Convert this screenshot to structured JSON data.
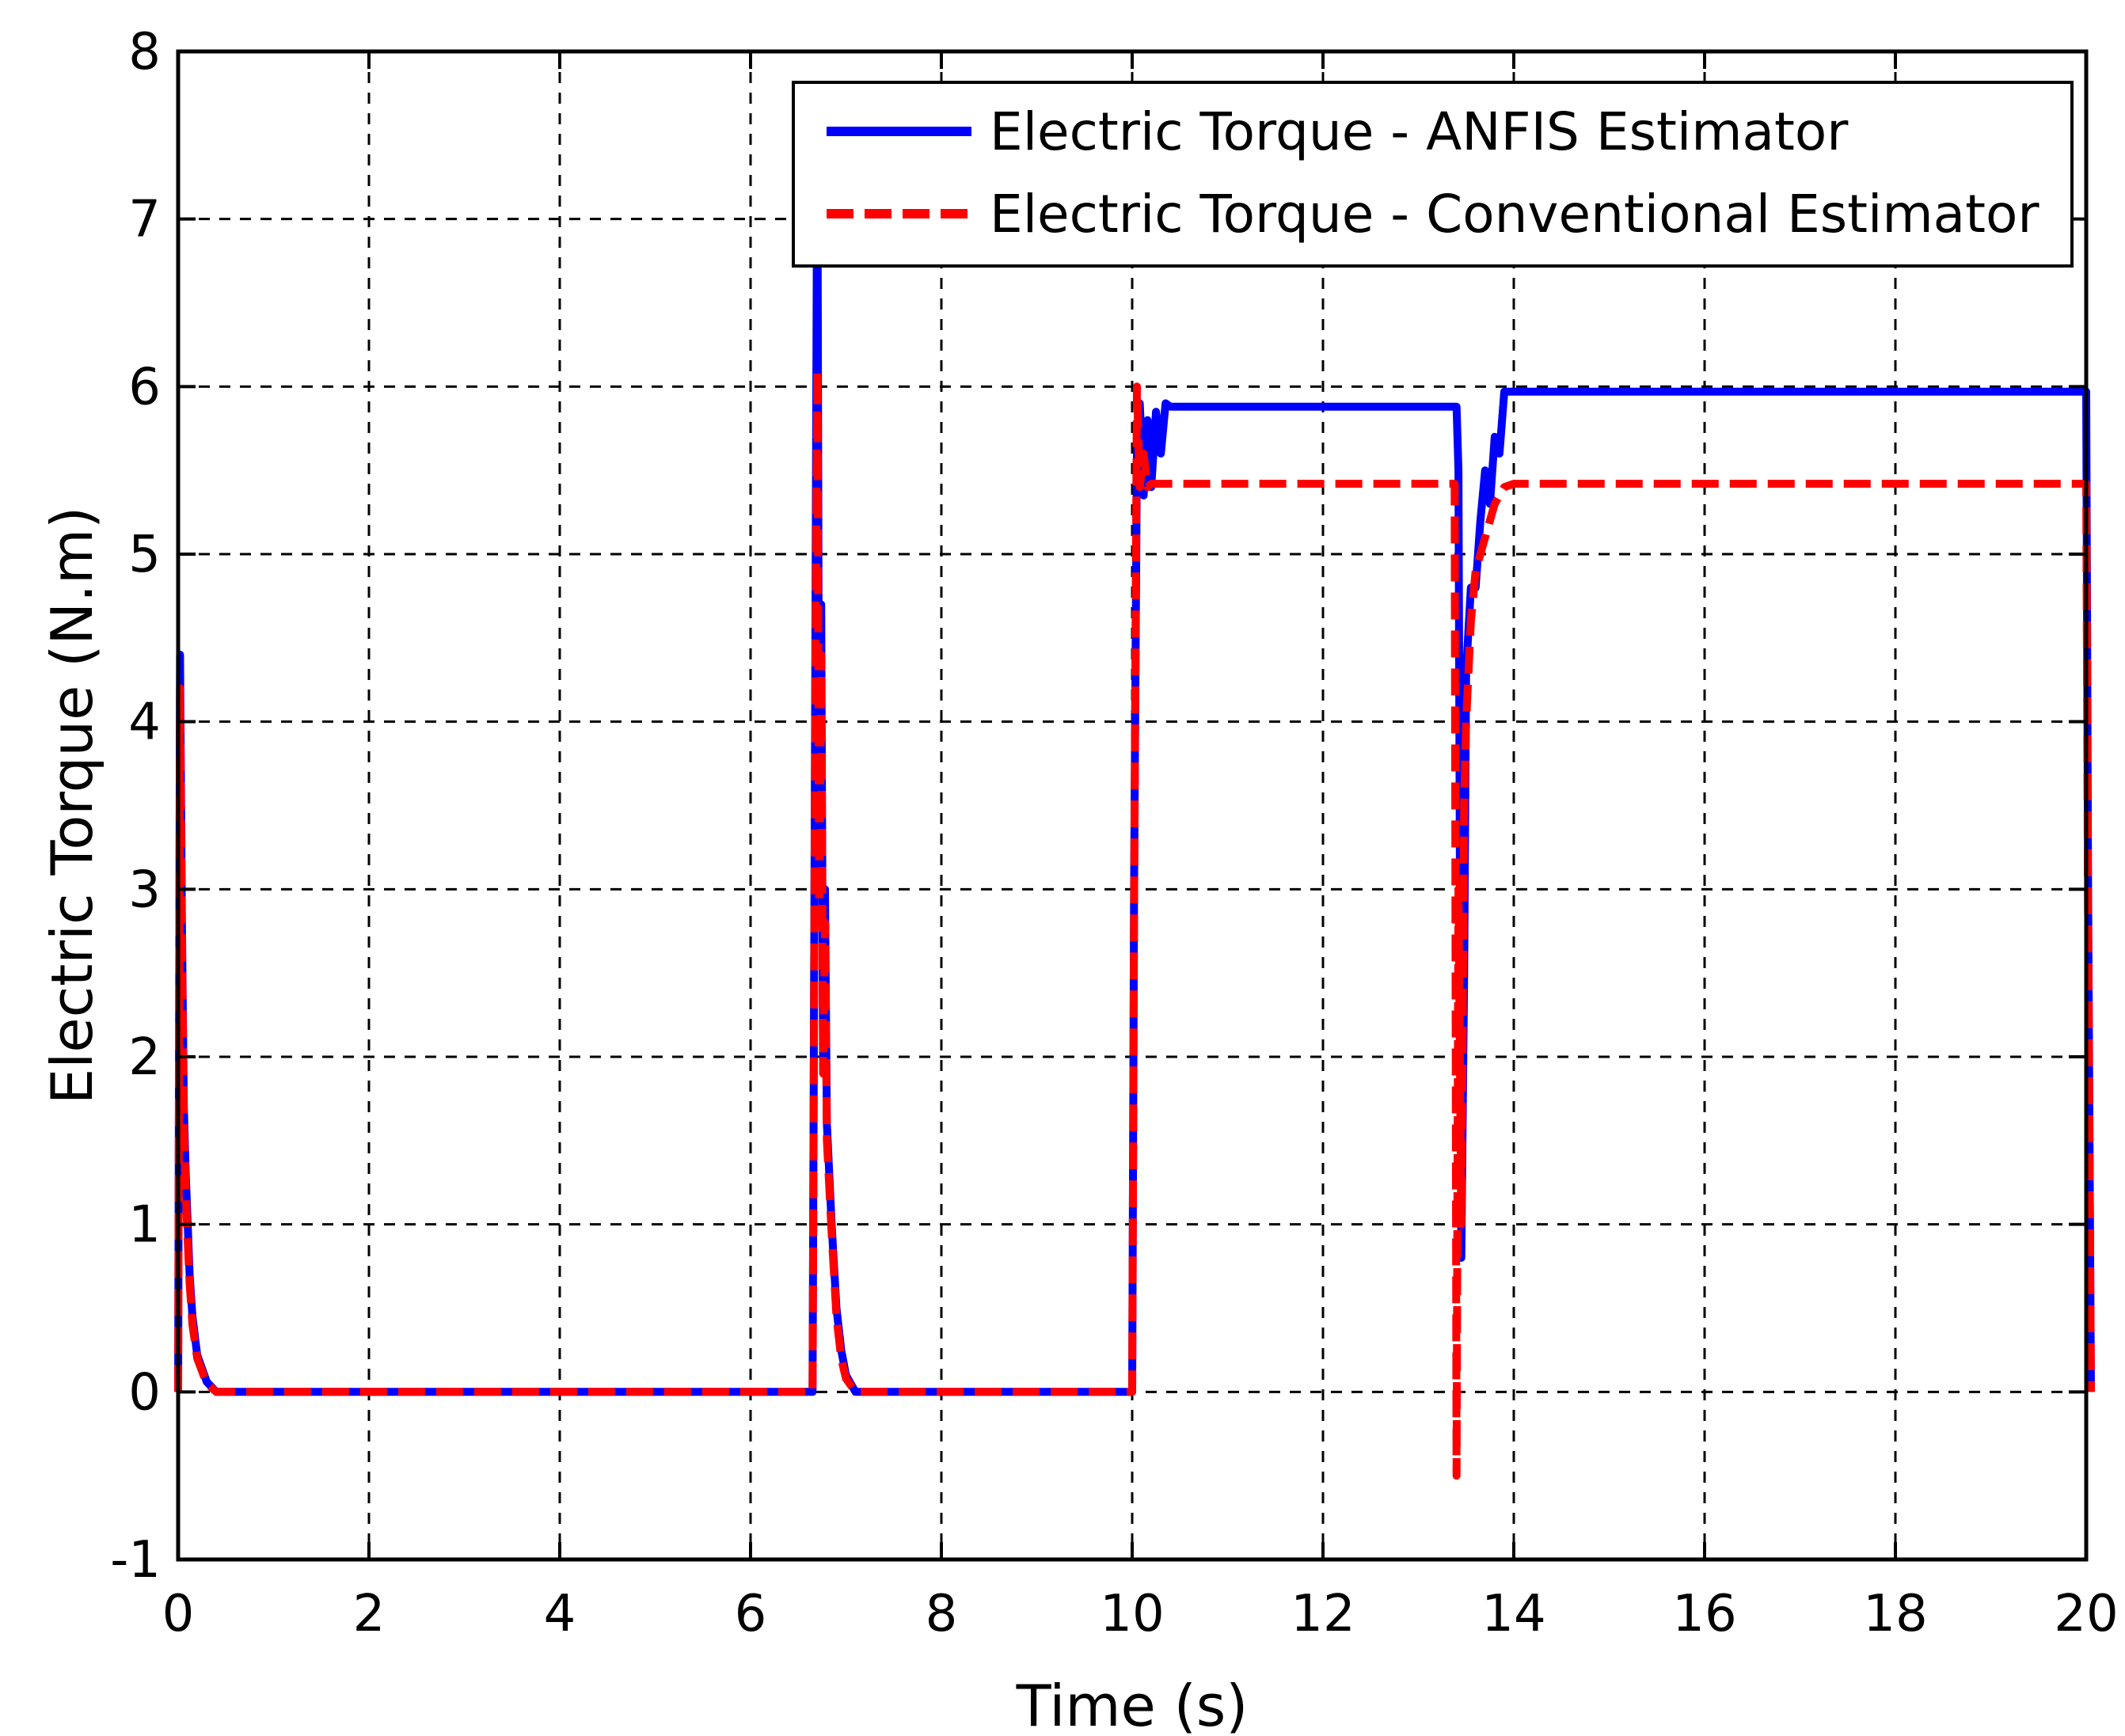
{
  "chart_data": {
    "type": "line",
    "title": "",
    "xlabel": "Time (s)",
    "ylabel": "Electric Torque (N.m)",
    "xlim": [
      0,
      20
    ],
    "ylim": [
      -1,
      8
    ],
    "xticks": [
      0,
      2,
      4,
      6,
      8,
      10,
      12,
      14,
      16,
      18,
      20
    ],
    "yticks": [
      -1,
      0,
      1,
      2,
      3,
      4,
      5,
      6,
      7,
      8
    ],
    "grid": true,
    "legend_position": "top-right",
    "series": [
      {
        "name": "Electric Torque - ANFIS Estimator",
        "color": "#0000ff",
        "style": "solid",
        "x": [
          0,
          0.02,
          0.04,
          0.06,
          0.08,
          0.1,
          0.12,
          0.15,
          0.2,
          0.3,
          0.4,
          0.5,
          6.65,
          6.68,
          6.7,
          6.72,
          6.74,
          6.76,
          6.78,
          6.8,
          6.85,
          6.9,
          6.95,
          7.0,
          7.1,
          7.2,
          7.35,
          10.0,
          10.02,
          10.05,
          10.08,
          10.12,
          10.16,
          10.2,
          10.25,
          10.3,
          10.35,
          10.4,
          13.4,
          13.42,
          13.45,
          13.48,
          13.5,
          13.55,
          13.6,
          13.65,
          13.7,
          13.75,
          13.8,
          13.85,
          13.9,
          13.95,
          20.0,
          20.02,
          20.05
        ],
        "y": [
          0,
          4.4,
          2.8,
          1.7,
          1.3,
          1.0,
          0.7,
          0.45,
          0.22,
          0.06,
          0.0,
          0.0,
          0.0,
          4.5,
          7.6,
          3.0,
          4.7,
          2.0,
          3.0,
          1.6,
          1.0,
          0.5,
          0.25,
          0.1,
          0.0,
          0.0,
          0.0,
          0.0,
          3.0,
          5.6,
          5.9,
          5.35,
          5.8,
          5.4,
          5.85,
          5.6,
          5.9,
          5.88,
          5.88,
          5.5,
          0.8,
          2.5,
          4.3,
          4.8,
          4.8,
          5.2,
          5.5,
          5.3,
          5.7,
          5.6,
          5.97,
          5.97,
          5.97,
          3.0,
          0.0
        ]
      },
      {
        "name": "Electric Torque - Conventional Estimator",
        "color": "#ff0000",
        "style": "dashed",
        "x": [
          0,
          0.02,
          0.04,
          0.06,
          0.08,
          0.1,
          0.12,
          0.15,
          0.2,
          0.3,
          0.4,
          0.5,
          6.65,
          6.68,
          6.7,
          6.72,
          6.74,
          6.76,
          6.78,
          6.8,
          6.85,
          6.9,
          6.95,
          7.0,
          7.1,
          7.2,
          7.35,
          10.0,
          10.02,
          10.05,
          10.08,
          10.12,
          10.16,
          10.2,
          10.25,
          10.3,
          13.38,
          13.4,
          13.42,
          13.45,
          13.48,
          13.5,
          13.55,
          13.6,
          13.7,
          13.8,
          13.9,
          14.0,
          20.0,
          20.02,
          20.05
        ],
        "y": [
          0,
          4.2,
          2.7,
          1.6,
          1.2,
          0.9,
          0.65,
          0.4,
          0.2,
          0.05,
          0.0,
          0.0,
          0.0,
          4.3,
          6.1,
          2.8,
          4.4,
          1.9,
          2.8,
          1.5,
          0.95,
          0.45,
          0.2,
          0.08,
          0.0,
          0.0,
          0.0,
          0.0,
          2.9,
          6.0,
          5.4,
          5.6,
          5.4,
          5.42,
          5.42,
          5.42,
          5.42,
          -0.5,
          3.0,
          1.0,
          3.5,
          4.0,
          4.6,
          4.9,
          5.1,
          5.3,
          5.4,
          5.42,
          5.42,
          2.8,
          0.0
        ]
      }
    ]
  }
}
